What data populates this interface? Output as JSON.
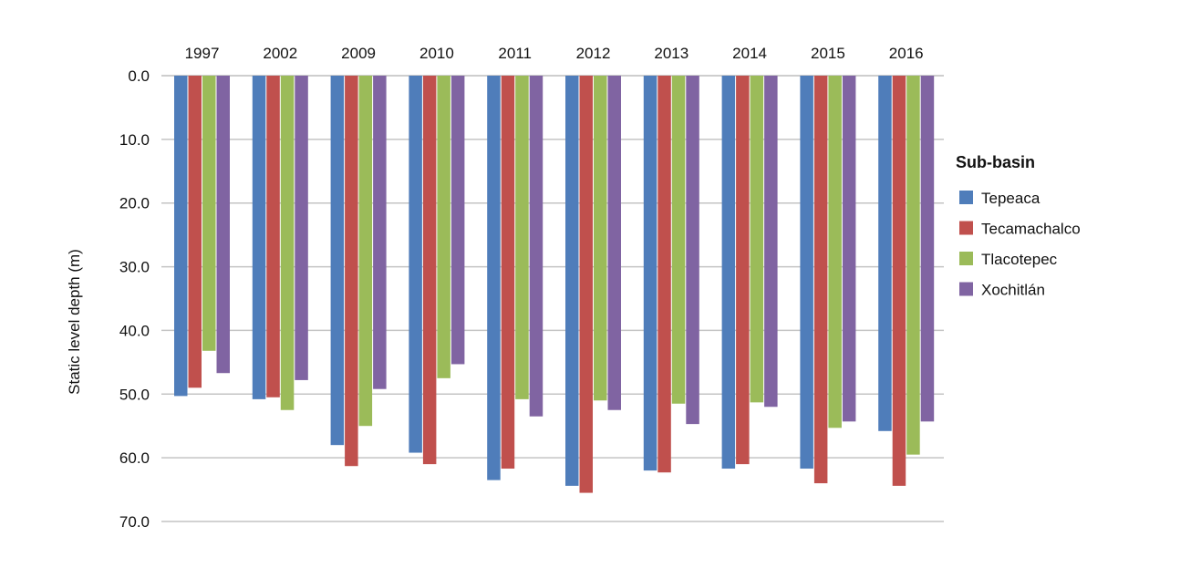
{
  "chart_data": {
    "type": "bar",
    "categories": [
      "1997",
      "2002",
      "2009",
      "2010",
      "2011",
      "2012",
      "2013",
      "2014",
      "2015",
      "2016"
    ],
    "series": [
      {
        "name": "Tepeaca",
        "color": "#4F7DBA",
        "values": [
          50.3,
          50.8,
          58.0,
          59.2,
          63.5,
          64.4,
          62.0,
          61.7,
          61.7,
          55.8
        ]
      },
      {
        "name": "Tecamachalco",
        "color": "#C0504D",
        "values": [
          49.0,
          50.5,
          61.3,
          61.0,
          61.7,
          65.5,
          62.3,
          61.0,
          64.0,
          64.4
        ]
      },
      {
        "name": "Tlacotepec",
        "color": "#9BBB59",
        "values": [
          43.2,
          52.5,
          55.0,
          47.5,
          50.8,
          51.0,
          51.5,
          51.3,
          55.3,
          59.5
        ]
      },
      {
        "name": "Xochitlán",
        "color": "#8064A2",
        "values": [
          46.7,
          47.8,
          49.2,
          45.3,
          53.5,
          52.5,
          54.7,
          52.0,
          54.3,
          54.3
        ]
      }
    ],
    "title": "",
    "xlabel": "",
    "ylabel": "Static level depth (m)",
    "ylim": [
      0,
      70
    ],
    "y_inverted": true,
    "y_ticks": [
      "0.0",
      "10.0",
      "20.0",
      "30.0",
      "40.0",
      "50.0",
      "60.0",
      "70.0"
    ],
    "x_axis_position": "top",
    "grid": true,
    "legend": {
      "title": "Sub-basin",
      "position": "right"
    }
  }
}
